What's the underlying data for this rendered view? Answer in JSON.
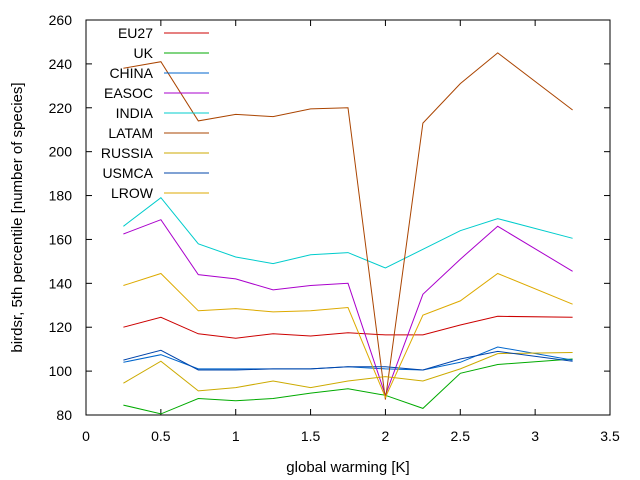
{
  "chart_data": {
    "type": "line",
    "title": "",
    "xlabel": "global warming [K]",
    "ylabel": "birdsr, 5th percentile [number of species]",
    "xlim": [
      0,
      3.5
    ],
    "ylim": [
      80,
      260
    ],
    "xticks": [
      0,
      0.5,
      1,
      1.5,
      2,
      2.5,
      3,
      3.5
    ],
    "xtick_labels": [
      "0",
      "0.5",
      "1",
      "1.5",
      "2",
      "2.5",
      "3",
      "3.5"
    ],
    "yticks": [
      80,
      100,
      120,
      140,
      160,
      180,
      200,
      220,
      240,
      260
    ],
    "ytick_labels": [
      "80",
      "100",
      "120",
      "140",
      "160",
      "180",
      "200",
      "220",
      "240",
      "260"
    ],
    "grid": false,
    "legend_position": "top-left",
    "x": [
      0.25,
      0.5,
      0.75,
      1.0,
      1.25,
      1.5,
      1.75,
      2.0,
      2.25,
      2.5,
      2.75,
      3.25
    ],
    "series": [
      {
        "name": "EU27",
        "color": "#cc0000",
        "values": [
          120,
          124.5,
          117,
          115,
          117,
          116,
          117.5,
          116.5,
          116.5,
          121,
          125,
          124.5
        ]
      },
      {
        "name": "UK",
        "color": "#00aa00",
        "values": [
          84.5,
          80.5,
          87.5,
          86.5,
          87.5,
          90,
          92,
          89,
          83,
          99,
          103,
          105.5
        ]
      },
      {
        "name": "CHINA",
        "color": "#0066cc",
        "values": [
          104,
          107.5,
          101,
          101,
          101,
          101,
          102,
          101,
          100.5,
          104,
          111,
          105
        ]
      },
      {
        "name": "EASOC",
        "color": "#aa00cc",
        "values": [
          162.5,
          169,
          144,
          142,
          137,
          139,
          140,
          89,
          135,
          151,
          166,
          145.5
        ]
      },
      {
        "name": "INDIA",
        "color": "#00cccc",
        "values": [
          166,
          179,
          158,
          152,
          149,
          153,
          154,
          147,
          155.5,
          164,
          169.5,
          160.5
        ]
      },
      {
        "name": "LATAM",
        "color": "#aa4400",
        "values": [
          238,
          241,
          214,
          217,
          216,
          219.5,
          220,
          87,
          213,
          231,
          245,
          219
        ]
      },
      {
        "name": "RUSSIA",
        "color": "#ccaa00",
        "values": [
          94.5,
          104.5,
          91,
          92.5,
          95.5,
          92.5,
          95.5,
          97.5,
          95.5,
          101,
          108,
          108.5
        ]
      },
      {
        "name": "USMCA",
        "color": "#0044aa",
        "values": [
          105,
          109.5,
          100.5,
          100.5,
          101,
          101,
          102,
          102,
          100.5,
          105.5,
          109,
          104.5
        ]
      },
      {
        "name": "LROW",
        "color": "#ddaa00",
        "values": [
          139,
          144.5,
          127.5,
          128.5,
          127,
          127.5,
          129,
          88,
          125.5,
          132,
          144.5,
          130.5
        ]
      }
    ]
  }
}
